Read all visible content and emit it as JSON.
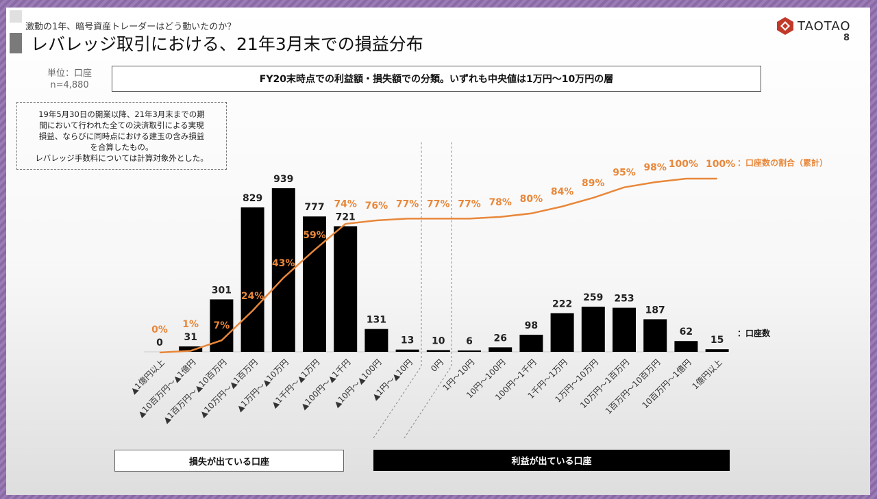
{
  "header": {
    "supertitle": "激動の1年、暗号資産トレーダーはどう動いたのか？",
    "title": "レバレッジ取引における、21年3月末での損益分布",
    "logo_text": "TAOTAO",
    "page_number": "8"
  },
  "unit_label": "単位：口座",
  "n_label": "n=4,880",
  "banner": "FY20末時点での利益額・損失額での分類。いずれも中央値は1万円～10万円の層",
  "note": "19年5月30日の開業以降、21年3月末までの期\n間において行われた全ての決済取引による実現\n損益、ならびに同時点における建玉の含み損益\nを合算したもの。\nレバレッジ手数料については計算対象外とした。",
  "groups": {
    "loss": "損失が出ている口座",
    "profit": "利益が出ている口座"
  },
  "colors": {
    "bar": "#000000",
    "line": "#e8873a",
    "accent": "#c0392b"
  },
  "chart_data": {
    "type": "bar+line",
    "categories": [
      "▲1億円以上",
      "▲10百万円～▲1億円",
      "▲1百万円～▲10百万円",
      "▲10万円～▲1百万円",
      "▲1万円～▲10万円",
      "▲1千円～▲1万円",
      "▲100円～▲1千円",
      "▲10円～▲100円",
      "▲1円～▲10円",
      "0円",
      "1円～10円",
      "10円～100円",
      "100円～1千円",
      "1千円～1万円",
      "1万円～10万円",
      "10万円～1百万円",
      "1百万円～10百万円",
      "10百万円～1億円",
      "1億円以上"
    ],
    "series": [
      {
        "name": "：口座数",
        "type": "bar",
        "values": [
          0,
          31,
          301,
          829,
          939,
          777,
          721,
          131,
          13,
          10,
          6,
          26,
          98,
          222,
          259,
          253,
          187,
          62,
          15
        ]
      },
      {
        "name": "：口座数の割合（累計）",
        "type": "line",
        "values": [
          0,
          1,
          7,
          24,
          43,
          59,
          74,
          76,
          77,
          77,
          77,
          78,
          80,
          84,
          89,
          95,
          98,
          100,
          100
        ],
        "unit": "%"
      }
    ],
    "ylim_bar": [
      0,
      939
    ],
    "ylim_line": [
      0,
      100
    ],
    "grid": false,
    "legend": "right"
  }
}
